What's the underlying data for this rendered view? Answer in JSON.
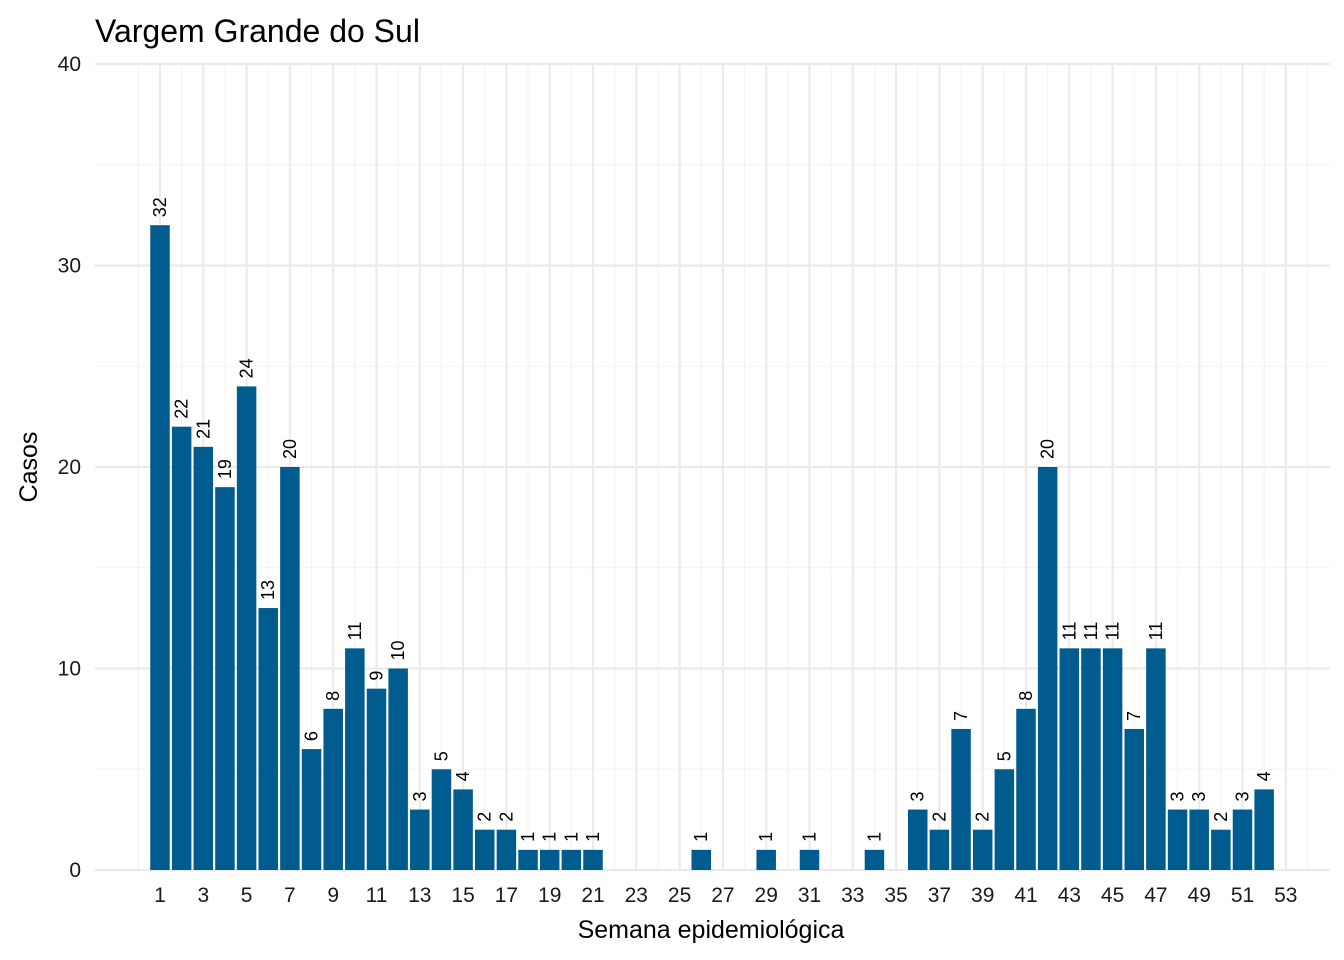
{
  "chart_data": {
    "type": "bar",
    "title": "Vargem Grande do Sul",
    "xlabel": "Semana epidemiológica",
    "ylabel": "Casos",
    "ylim": [
      0,
      40
    ],
    "y_ticks": [
      0,
      10,
      20,
      30,
      40
    ],
    "x_ticks": [
      1,
      3,
      5,
      7,
      9,
      11,
      13,
      15,
      17,
      19,
      21,
      23,
      25,
      27,
      29,
      31,
      33,
      35,
      37,
      39,
      41,
      43,
      45,
      47,
      49,
      51,
      53
    ],
    "grid": true,
    "bar_color": "#005b8f",
    "series": [
      {
        "points": [
          {
            "x": 1,
            "y": 32
          },
          {
            "x": 2,
            "y": 22
          },
          {
            "x": 3,
            "y": 21
          },
          {
            "x": 4,
            "y": 19
          },
          {
            "x": 5,
            "y": 24
          },
          {
            "x": 6,
            "y": 13
          },
          {
            "x": 7,
            "y": 20
          },
          {
            "x": 8,
            "y": 6
          },
          {
            "x": 9,
            "y": 8
          },
          {
            "x": 10,
            "y": 11
          },
          {
            "x": 11,
            "y": 9
          },
          {
            "x": 12,
            "y": 10
          },
          {
            "x": 13,
            "y": 3
          },
          {
            "x": 14,
            "y": 5
          },
          {
            "x": 15,
            "y": 4
          },
          {
            "x": 16,
            "y": 2
          },
          {
            "x": 17,
            "y": 2
          },
          {
            "x": 18,
            "y": 1
          },
          {
            "x": 19,
            "y": 1
          },
          {
            "x": 20,
            "y": 1
          },
          {
            "x": 21,
            "y": 1
          },
          {
            "x": 26,
            "y": 1
          },
          {
            "x": 29,
            "y": 1
          },
          {
            "x": 31,
            "y": 1
          },
          {
            "x": 34,
            "y": 1
          },
          {
            "x": 36,
            "y": 3
          },
          {
            "x": 37,
            "y": 2
          },
          {
            "x": 38,
            "y": 7
          },
          {
            "x": 39,
            "y": 2
          },
          {
            "x": 40,
            "y": 5
          },
          {
            "x": 41,
            "y": 8
          },
          {
            "x": 42,
            "y": 20
          },
          {
            "x": 43,
            "y": 11
          },
          {
            "x": 44,
            "y": 11
          },
          {
            "x": 45,
            "y": 11
          },
          {
            "x": 46,
            "y": 7
          },
          {
            "x": 47,
            "y": 11
          },
          {
            "x": 48,
            "y": 3
          },
          {
            "x": 49,
            "y": 3
          },
          {
            "x": 50,
            "y": 2
          },
          {
            "x": 51,
            "y": 3
          },
          {
            "x": 52,
            "y": 4
          }
        ]
      }
    ]
  }
}
